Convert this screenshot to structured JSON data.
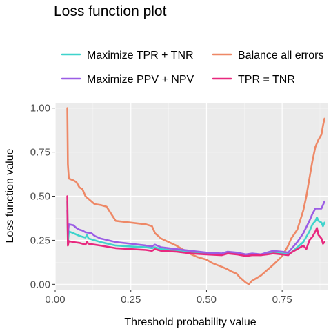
{
  "chart_data": {
    "type": "line",
    "title": "Loss function plot",
    "xlabel": "Threshold probability value",
    "ylabel": "Loss function value",
    "xlim": [
      0.0,
      0.9
    ],
    "ylim": [
      -0.03,
      1.03
    ],
    "x_ticks": [
      0.0,
      0.25,
      0.5,
      0.75
    ],
    "x_tick_labels": [
      "0.00",
      "0.25",
      "0.50",
      "0.75"
    ],
    "y_ticks": [
      0.0,
      0.25,
      0.5,
      0.75,
      1.0
    ],
    "y_tick_labels": [
      "0.00",
      "0.25",
      "0.50",
      "0.75",
      "1.00"
    ],
    "grid": true,
    "legend_position": "top",
    "series": [
      {
        "name": "Maximize TPR + TNR",
        "color": "#3FD3CC",
        "points": [
          [
            0.04,
            0.47
          ],
          [
            0.042,
            0.23
          ],
          [
            0.045,
            0.3
          ],
          [
            0.06,
            0.29
          ],
          [
            0.08,
            0.275
          ],
          [
            0.1,
            0.265
          ],
          [
            0.105,
            0.28
          ],
          [
            0.11,
            0.26
          ],
          [
            0.13,
            0.25
          ],
          [
            0.15,
            0.24
          ],
          [
            0.2,
            0.22
          ],
          [
            0.25,
            0.215
          ],
          [
            0.3,
            0.21
          ],
          [
            0.32,
            0.205
          ],
          [
            0.33,
            0.21
          ],
          [
            0.35,
            0.2
          ],
          [
            0.4,
            0.19
          ],
          [
            0.45,
            0.18
          ],
          [
            0.5,
            0.175
          ],
          [
            0.55,
            0.17
          ],
          [
            0.57,
            0.18
          ],
          [
            0.6,
            0.175
          ],
          [
            0.63,
            0.165
          ],
          [
            0.65,
            0.17
          ],
          [
            0.68,
            0.165
          ],
          [
            0.7,
            0.175
          ],
          [
            0.72,
            0.18
          ],
          [
            0.75,
            0.175
          ],
          [
            0.77,
            0.17
          ],
          [
            0.78,
            0.18
          ],
          [
            0.8,
            0.21
          ],
          [
            0.82,
            0.24
          ],
          [
            0.84,
            0.3
          ],
          [
            0.85,
            0.34
          ],
          [
            0.86,
            0.36
          ],
          [
            0.865,
            0.38
          ],
          [
            0.87,
            0.36
          ],
          [
            0.88,
            0.35
          ],
          [
            0.885,
            0.33
          ],
          [
            0.89,
            0.35
          ]
        ]
      },
      {
        "name": "Maximize PPV + NPV",
        "color": "#9B5DE5",
        "points": [
          [
            0.04,
            0.42
          ],
          [
            0.042,
            0.28
          ],
          [
            0.045,
            0.34
          ],
          [
            0.06,
            0.335
          ],
          [
            0.07,
            0.32
          ],
          [
            0.08,
            0.31
          ],
          [
            0.09,
            0.305
          ],
          [
            0.1,
            0.295
          ],
          [
            0.12,
            0.29
          ],
          [
            0.13,
            0.275
          ],
          [
            0.15,
            0.26
          ],
          [
            0.2,
            0.24
          ],
          [
            0.25,
            0.23
          ],
          [
            0.3,
            0.22
          ],
          [
            0.32,
            0.215
          ],
          [
            0.33,
            0.225
          ],
          [
            0.35,
            0.21
          ],
          [
            0.4,
            0.2
          ],
          [
            0.45,
            0.19
          ],
          [
            0.5,
            0.18
          ],
          [
            0.55,
            0.175
          ],
          [
            0.57,
            0.185
          ],
          [
            0.6,
            0.18
          ],
          [
            0.63,
            0.17
          ],
          [
            0.65,
            0.175
          ],
          [
            0.68,
            0.17
          ],
          [
            0.7,
            0.18
          ],
          [
            0.72,
            0.19
          ],
          [
            0.75,
            0.185
          ],
          [
            0.77,
            0.18
          ],
          [
            0.78,
            0.2
          ],
          [
            0.8,
            0.24
          ],
          [
            0.82,
            0.29
          ],
          [
            0.84,
            0.36
          ],
          [
            0.85,
            0.4
          ],
          [
            0.86,
            0.43
          ],
          [
            0.87,
            0.43
          ],
          [
            0.88,
            0.43
          ],
          [
            0.885,
            0.45
          ],
          [
            0.89,
            0.47
          ]
        ]
      },
      {
        "name": "Balance all errors",
        "color": "#EE8866",
        "points": [
          [
            0.04,
            1.0
          ],
          [
            0.042,
            0.68
          ],
          [
            0.045,
            0.6
          ],
          [
            0.06,
            0.59
          ],
          [
            0.07,
            0.58
          ],
          [
            0.08,
            0.55
          ],
          [
            0.09,
            0.54
          ],
          [
            0.1,
            0.5
          ],
          [
            0.12,
            0.47
          ],
          [
            0.13,
            0.455
          ],
          [
            0.15,
            0.45
          ],
          [
            0.17,
            0.44
          ],
          [
            0.2,
            0.36
          ],
          [
            0.25,
            0.35
          ],
          [
            0.3,
            0.34
          ],
          [
            0.32,
            0.33
          ],
          [
            0.33,
            0.29
          ],
          [
            0.35,
            0.26
          ],
          [
            0.4,
            0.22
          ],
          [
            0.42,
            0.2
          ],
          [
            0.45,
            0.17
          ],
          [
            0.47,
            0.155
          ],
          [
            0.5,
            0.14
          ],
          [
            0.52,
            0.12
          ],
          [
            0.55,
            0.1
          ],
          [
            0.57,
            0.085
          ],
          [
            0.58,
            0.075
          ],
          [
            0.6,
            0.06
          ],
          [
            0.61,
            0.04
          ],
          [
            0.63,
            0.01
          ],
          [
            0.64,
            0.0
          ],
          [
            0.65,
            0.02
          ],
          [
            0.68,
            0.05
          ],
          [
            0.7,
            0.08
          ],
          [
            0.72,
            0.11
          ],
          [
            0.75,
            0.16
          ],
          [
            0.77,
            0.22
          ],
          [
            0.78,
            0.26
          ],
          [
            0.8,
            0.31
          ],
          [
            0.82,
            0.42
          ],
          [
            0.83,
            0.5
          ],
          [
            0.84,
            0.6
          ],
          [
            0.85,
            0.7
          ],
          [
            0.86,
            0.78
          ],
          [
            0.87,
            0.82
          ],
          [
            0.88,
            0.85
          ],
          [
            0.885,
            0.9
          ],
          [
            0.89,
            0.94
          ]
        ]
      },
      {
        "name": "TPR = TNR",
        "color": "#E8287E",
        "points": [
          [
            0.04,
            0.5
          ],
          [
            0.042,
            0.22
          ],
          [
            0.045,
            0.245
          ],
          [
            0.06,
            0.24
          ],
          [
            0.08,
            0.235
          ],
          [
            0.1,
            0.225
          ],
          [
            0.105,
            0.24
          ],
          [
            0.11,
            0.23
          ],
          [
            0.13,
            0.225
          ],
          [
            0.15,
            0.22
          ],
          [
            0.2,
            0.205
          ],
          [
            0.25,
            0.2
          ],
          [
            0.3,
            0.195
          ],
          [
            0.32,
            0.19
          ],
          [
            0.33,
            0.2
          ],
          [
            0.35,
            0.19
          ],
          [
            0.4,
            0.185
          ],
          [
            0.45,
            0.175
          ],
          [
            0.5,
            0.17
          ],
          [
            0.55,
            0.165
          ],
          [
            0.57,
            0.175
          ],
          [
            0.6,
            0.17
          ],
          [
            0.63,
            0.16
          ],
          [
            0.65,
            0.165
          ],
          [
            0.68,
            0.165
          ],
          [
            0.7,
            0.17
          ],
          [
            0.72,
            0.175
          ],
          [
            0.75,
            0.17
          ],
          [
            0.77,
            0.165
          ],
          [
            0.78,
            0.18
          ],
          [
            0.8,
            0.2
          ],
          [
            0.82,
            0.22
          ],
          [
            0.83,
            0.2
          ],
          [
            0.84,
            0.25
          ],
          [
            0.85,
            0.27
          ],
          [
            0.86,
            0.3
          ],
          [
            0.865,
            0.32
          ],
          [
            0.87,
            0.28
          ],
          [
            0.88,
            0.26
          ],
          [
            0.885,
            0.23
          ],
          [
            0.89,
            0.24
          ]
        ]
      }
    ]
  }
}
